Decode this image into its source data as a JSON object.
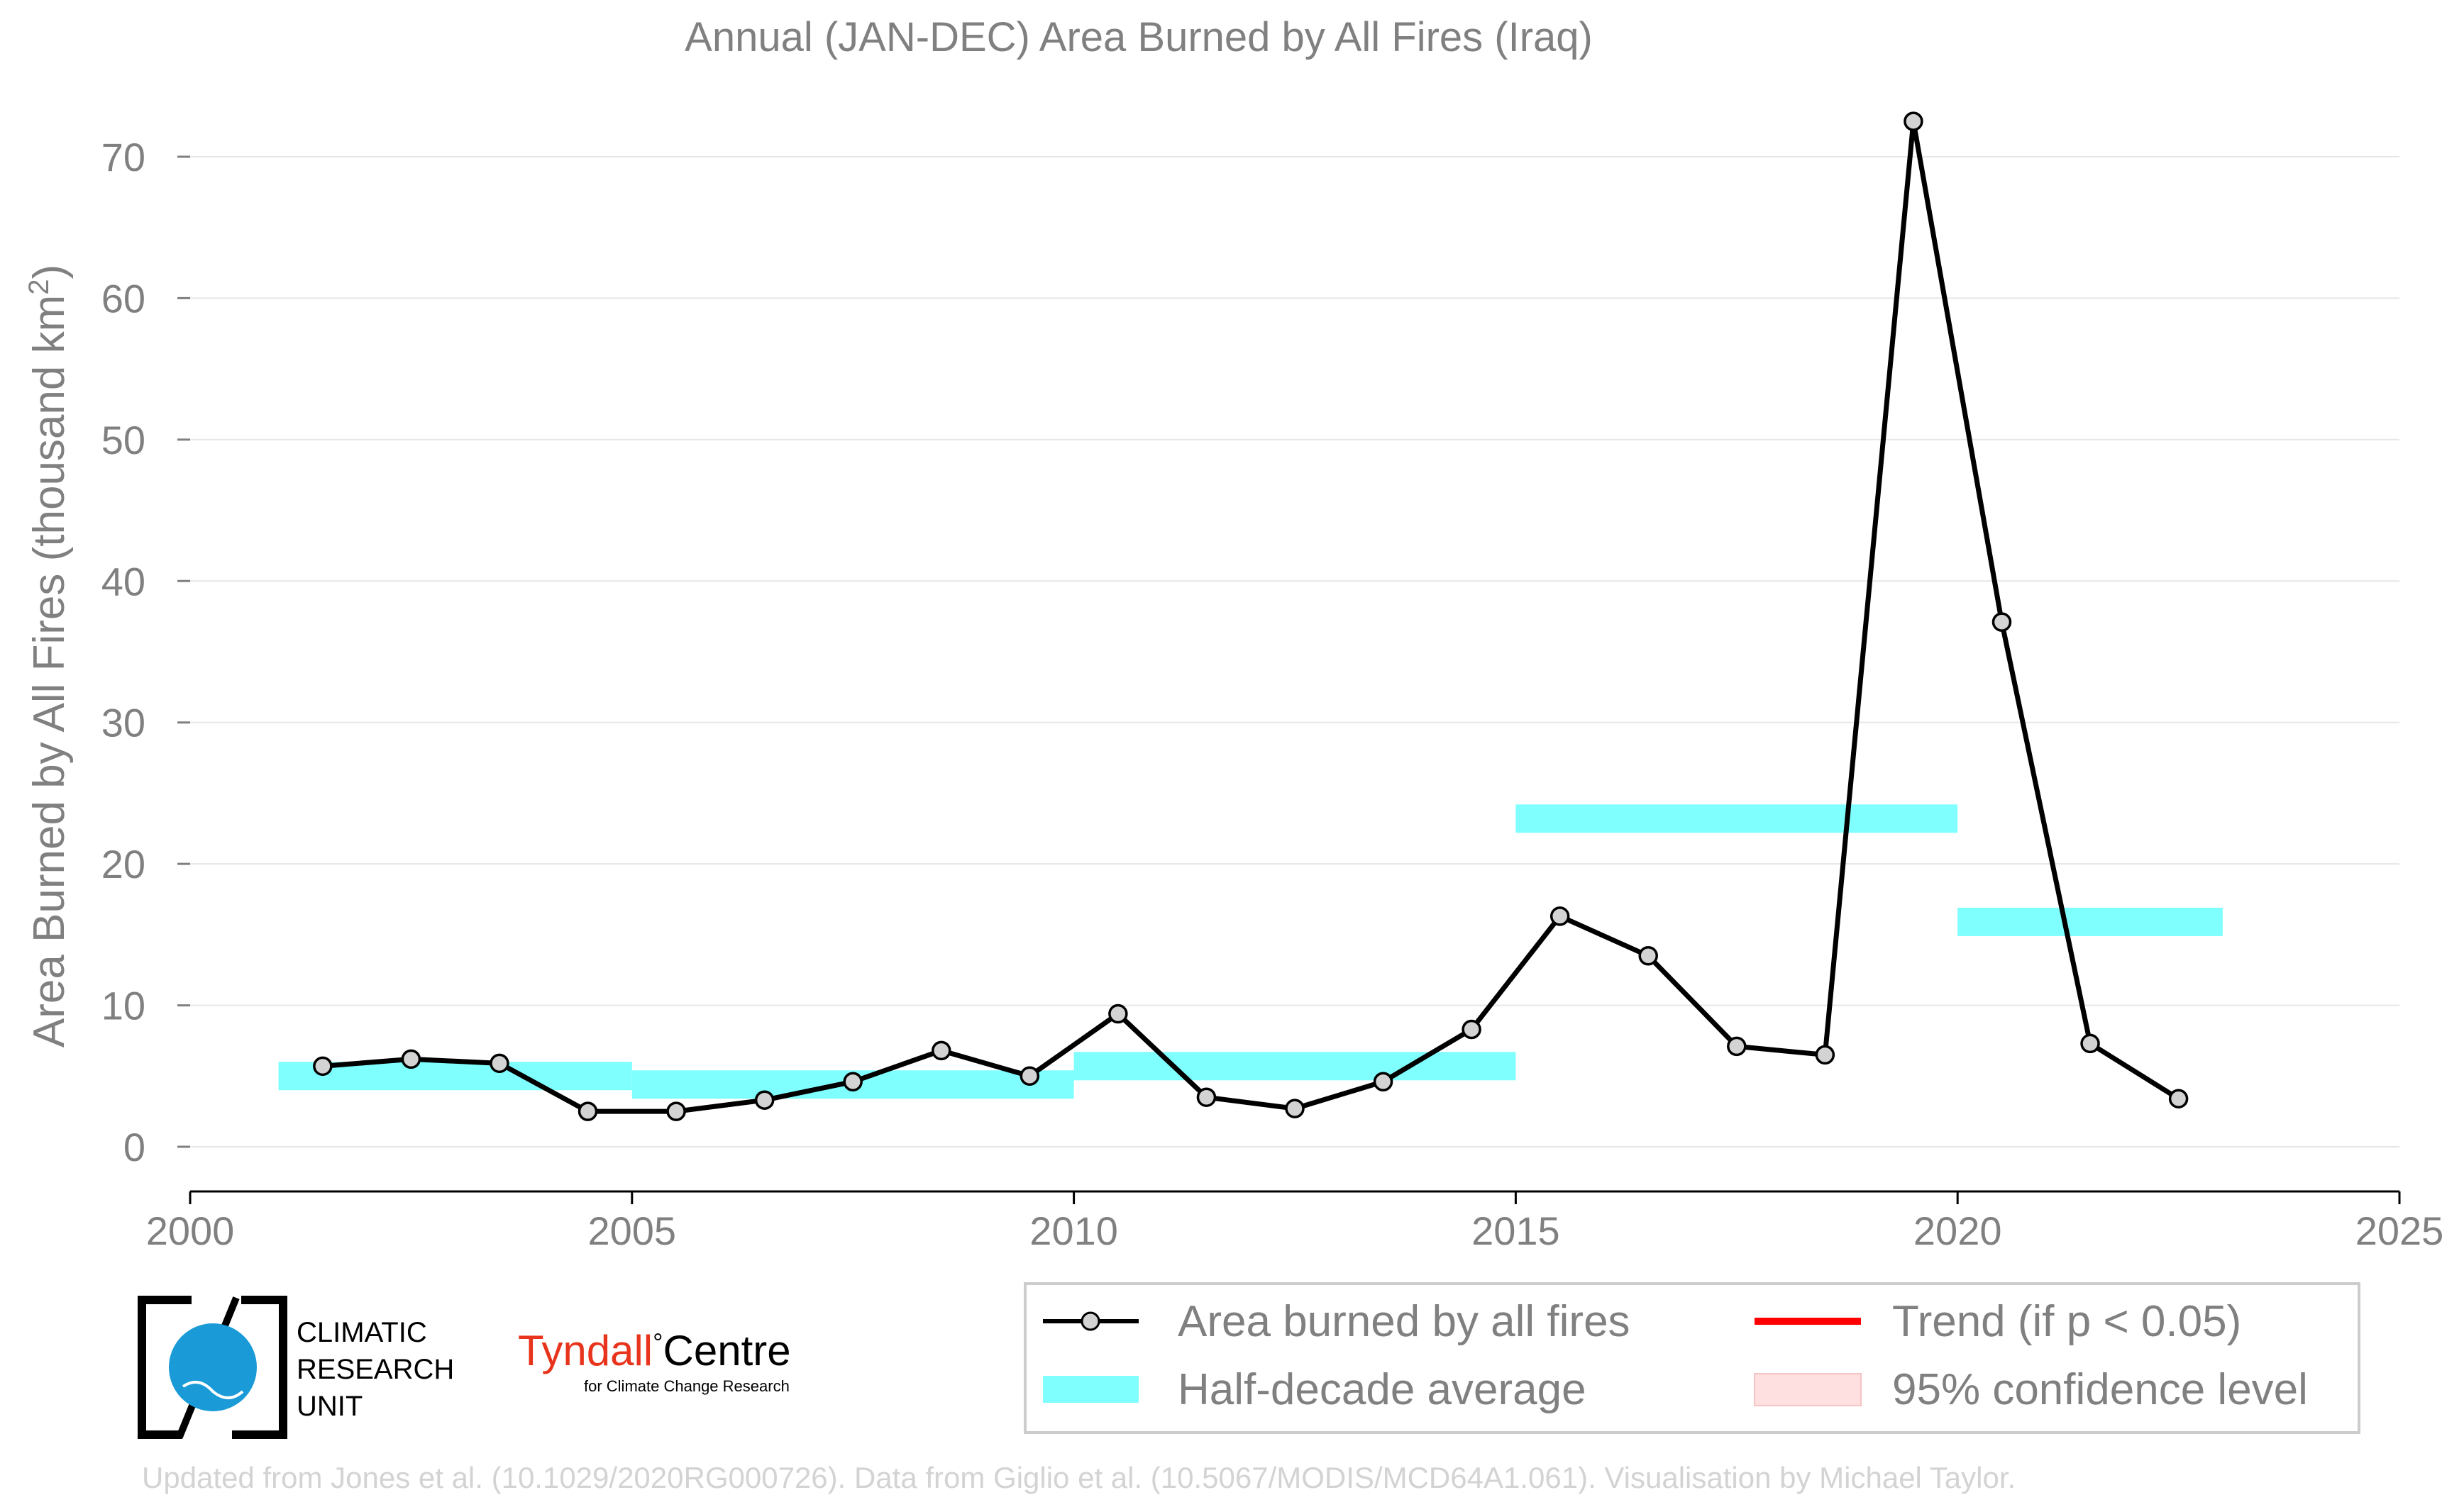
{
  "chart_data": {
    "type": "line",
    "title": "Annual (JAN-DEC) Area Burned by All Fires (Iraq)",
    "ylabel": "Area Burned by All Fires (thousand km",
    "ylabel_superscript": "2",
    "ylabel_suffix": ")",
    "xlabel": "",
    "xlim": [
      2000,
      2025
    ],
    "ylim": [
      -3,
      74
    ],
    "x_ticks": [
      2000,
      2005,
      2010,
      2015,
      2020,
      2025
    ],
    "y_ticks": [
      0,
      10,
      20,
      30,
      40,
      50,
      60,
      70
    ],
    "grid": "horizontal",
    "series": [
      {
        "name": "Area burned by all fires",
        "color": "#000000",
        "marker_fill": "#d3d3d3",
        "x": [
          2001.5,
          2002.5,
          2003.5,
          2004.5,
          2005.5,
          2006.5,
          2007.5,
          2008.5,
          2009.5,
          2010.5,
          2011.5,
          2012.5,
          2013.5,
          2014.5,
          2015.5,
          2016.5,
          2017.5,
          2018.5,
          2019.5,
          2020.5,
          2021.5,
          2022.5
        ],
        "y": [
          5.7,
          6.2,
          5.9,
          2.5,
          2.5,
          3.3,
          4.6,
          6.8,
          5.0,
          9.4,
          3.5,
          2.7,
          4.6,
          8.3,
          16.3,
          13.5,
          7.1,
          6.5,
          72.5,
          37.1,
          7.3,
          3.4
        ]
      }
    ],
    "half_decade_averages": {
      "name": "Half-decade average",
      "color": "#80ffff",
      "segments": [
        {
          "x_start": 2001,
          "x_end": 2005,
          "value": 5.0
        },
        {
          "x_start": 2005,
          "x_end": 2010,
          "value": 4.4
        },
        {
          "x_start": 2010,
          "x_end": 2015,
          "value": 5.7
        },
        {
          "x_start": 2015,
          "x_end": 2020,
          "value": 23.2
        },
        {
          "x_start": 2020,
          "x_end": 2023,
          "value": 15.9
        }
      ]
    },
    "legend": {
      "placement": "bottom-right",
      "entries": [
        {
          "label": "Area burned by all fires",
          "kind": "line-marker",
          "color": "#000000"
        },
        {
          "label": "Half-decade average",
          "kind": "band",
          "color": "#80ffff"
        },
        {
          "label": "Trend (if p < 0.05)",
          "kind": "line",
          "color": "#ff0000"
        },
        {
          "label": "95% confidence level",
          "kind": "band",
          "color": "#ffe0e0"
        }
      ]
    }
  },
  "logos": {
    "cru": {
      "line1": "CLIMATIC",
      "line2": "RESEARCH",
      "line3": "UNIT"
    },
    "tyndall": {
      "name1": "Tyndall",
      "degree": "°",
      "name2": "Centre",
      "tagline": "for Climate Change Research",
      "accent": "#e8341c"
    }
  },
  "footer": "Updated from Jones et al. (10.1029/2020RG000726). Data from Giglio et al. (10.5067/MODIS/MCD64A1.061). Visualisation by Michael Taylor."
}
